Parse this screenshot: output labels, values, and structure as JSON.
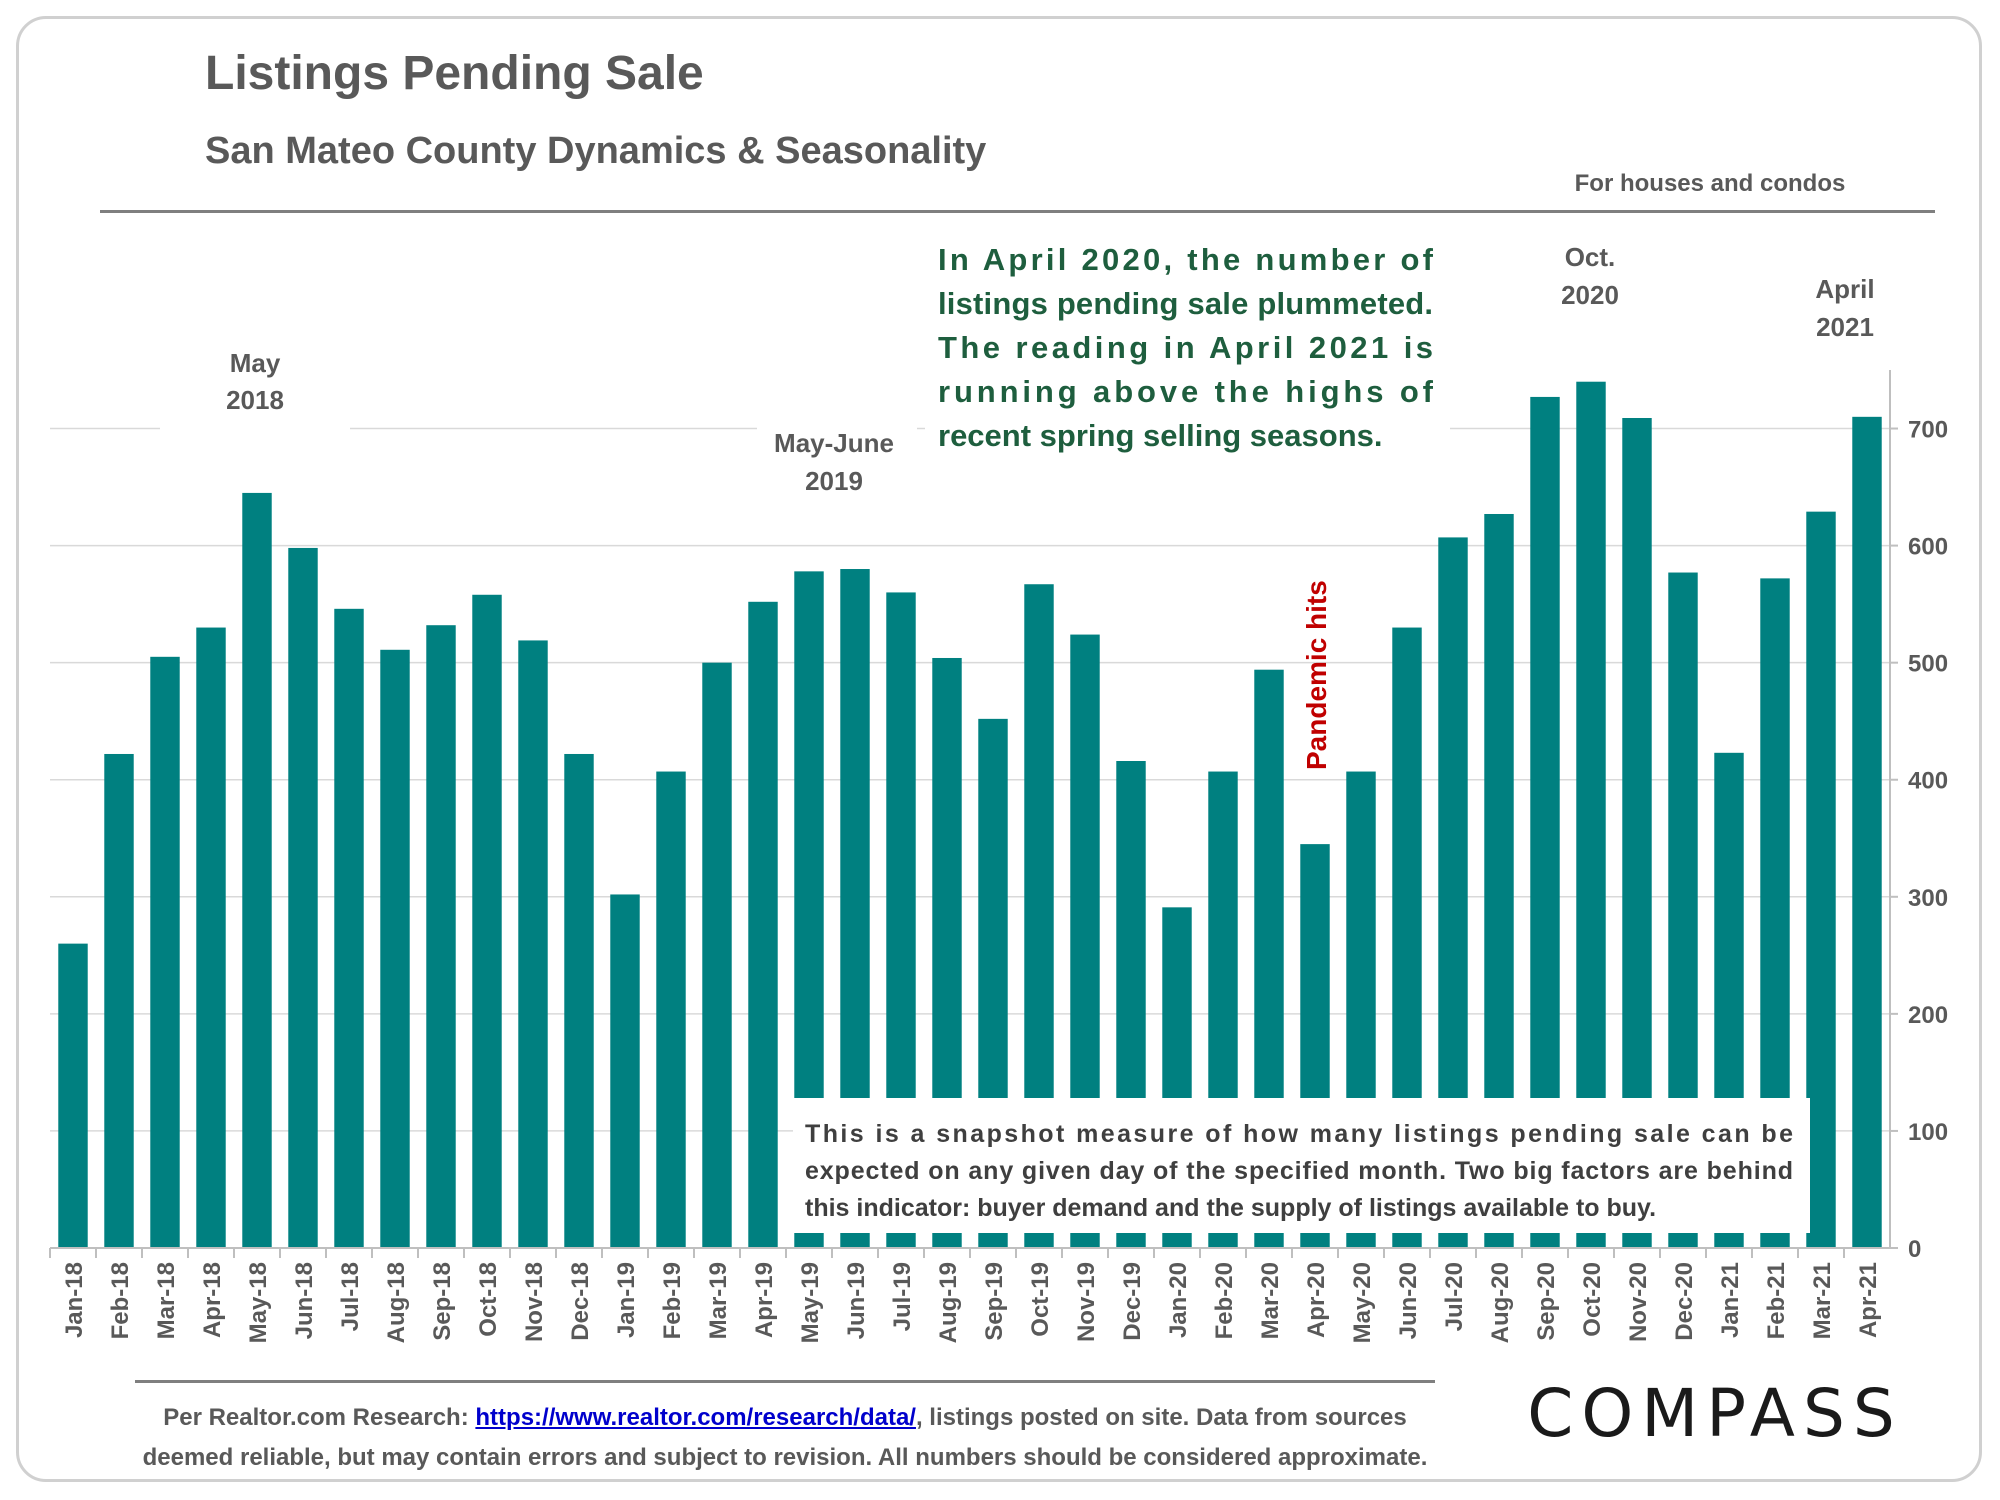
{
  "title": "Listings Pending Sale",
  "subtitle": "San Mateo County Dynamics & Seasonality",
  "houses_note": "For houses and condos",
  "annotations": {
    "may2018": [
      "May",
      "2018"
    ],
    "mayjune2019": [
      "May-June",
      "2019"
    ],
    "oct2020": [
      "Oct.",
      "2020"
    ],
    "april2021": [
      "April",
      "2021"
    ],
    "pandemic": "Pandemic hits",
    "commentary": [
      "In April 2020, the number of",
      "listings pending sale plummeted.",
      "The reading in April 2021 is",
      "running above the highs of",
      "recent spring selling seasons."
    ],
    "snapshot": [
      "This is a snapshot measure of how many listings pending sale can be",
      "expected on any given day of the specified month. Two big factors are behind",
      "this indicator: buyer demand and the supply of listings available to buy."
    ]
  },
  "source": {
    "prefix": "Per Realtor.com Research:",
    "link": "https://www.realtor.com/research/data/",
    "suffix": ", listings posted on site. Data from sources",
    "line2": "deemed reliable, but may contain errors and subject to revision. All numbers should be considered approximate."
  },
  "logo": "COMPASS",
  "colors": {
    "bar": "#008080",
    "commentary": "#1e5e3e",
    "pandemic": "#c00000",
    "text": "#595959"
  },
  "chart_data": {
    "type": "bar",
    "title": "Listings Pending Sale",
    "categories": [
      "Jan-18",
      "Feb-18",
      "Mar-18",
      "Apr-18",
      "May-18",
      "Jun-18",
      "Jul-18",
      "Aug-18",
      "Sep-18",
      "Oct-18",
      "Nov-18",
      "Dec-18",
      "Jan-19",
      "Feb-19",
      "Mar-19",
      "Apr-19",
      "May-19",
      "Jun-19",
      "Jul-19",
      "Aug-19",
      "Sep-19",
      "Oct-19",
      "Nov-19",
      "Dec-19",
      "Jan-20",
      "Feb-20",
      "Mar-20",
      "Apr-20",
      "May-20",
      "Jun-20",
      "Jul-20",
      "Aug-20",
      "Sep-20",
      "Oct-20",
      "Nov-20",
      "Dec-20",
      "Jan-21",
      "Feb-21",
      "Mar-21",
      "Apr-21"
    ],
    "values": [
      260,
      422,
      505,
      530,
      645,
      598,
      546,
      511,
      532,
      558,
      519,
      422,
      302,
      407,
      500,
      552,
      578,
      580,
      560,
      504,
      452,
      567,
      524,
      416,
      291,
      407,
      494,
      345,
      407,
      530,
      607,
      627,
      727,
      740,
      709,
      577,
      423,
      572,
      629,
      710
    ],
    "ylim": [
      0,
      750
    ],
    "yticks": [
      0,
      100,
      200,
      300,
      400,
      500,
      600,
      700
    ],
    "y_axis_side": "right",
    "grid": true,
    "legend": "none"
  }
}
